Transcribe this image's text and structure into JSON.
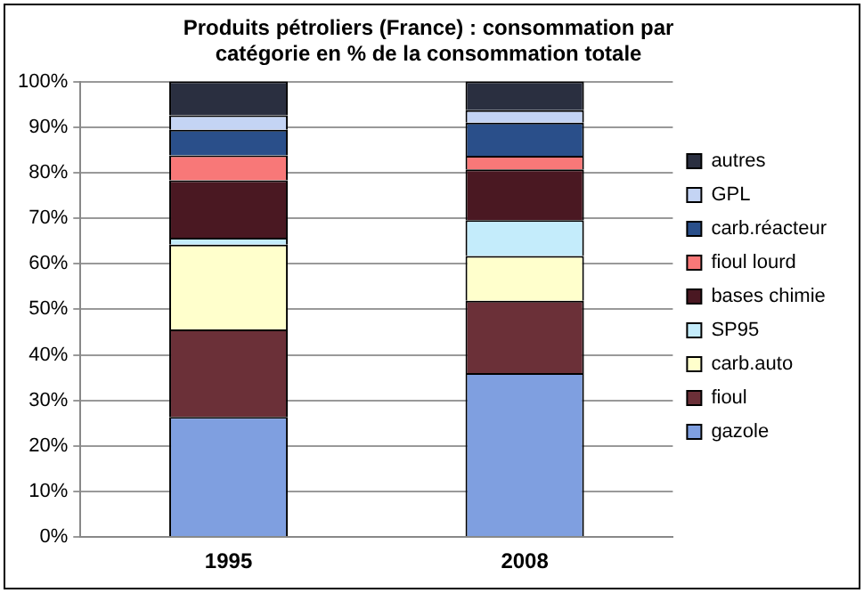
{
  "chart_data": {
    "type": "bar",
    "stacked": true,
    "title": "Produits pétroliers (France) : consommation par catégorie en % de la consommation totale",
    "categories": [
      "1995",
      "2008"
    ],
    "series": [
      {
        "name": "gazole",
        "color": "#7f9fe0",
        "values": [
          26.4,
          36.0
        ]
      },
      {
        "name": "fioul",
        "color": "#6b3038",
        "values": [
          19.2,
          15.9
        ]
      },
      {
        "name": "carb.auto",
        "color": "#ffffcc",
        "values": [
          18.6,
          9.8
        ]
      },
      {
        "name": "SP95",
        "color": "#c4ecfb",
        "values": [
          1.5,
          7.9
        ]
      },
      {
        "name": "bases chimie",
        "color": "#4a1822",
        "values": [
          12.6,
          11.1
        ]
      },
      {
        "name": "fioul lourd",
        "color": "#f87878",
        "values": [
          5.5,
          3.0
        ]
      },
      {
        "name": "carb.réacteur",
        "color": "#2a4f8a",
        "values": [
          5.6,
          7.3
        ]
      },
      {
        "name": "GPL",
        "color": "#c4d4f4",
        "values": [
          3.2,
          2.7
        ]
      },
      {
        "name": "autres",
        "color": "#2a2f40",
        "values": [
          7.4,
          6.3
        ]
      }
    ],
    "ylim": [
      0,
      100
    ],
    "yticks": [
      {
        "value": 0,
        "label": "0%"
      },
      {
        "value": 10,
        "label": "10%"
      },
      {
        "value": 20,
        "label": "20%"
      },
      {
        "value": 30,
        "label": "30%"
      },
      {
        "value": 40,
        "label": "40%"
      },
      {
        "value": 50,
        "label": "50%"
      },
      {
        "value": 60,
        "label": "60%"
      },
      {
        "value": 70,
        "label": "70%"
      },
      {
        "value": 80,
        "label": "80%"
      },
      {
        "value": 90,
        "label": "90%"
      },
      {
        "value": 100,
        "label": "100%"
      }
    ],
    "grid": "y",
    "legend": "right"
  }
}
